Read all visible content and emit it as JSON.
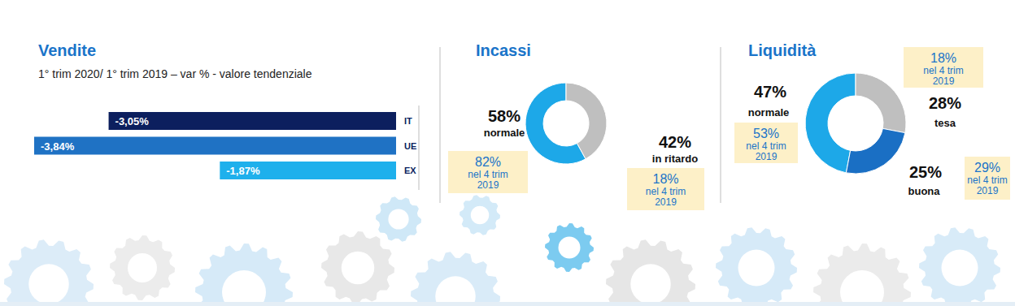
{
  "chart_data": [
    {
      "type": "bar",
      "title": "Vendite",
      "subtitle": "1° trim 2020/ 1° trim 2019 – var % - valore tendenziale",
      "orientation": "horizontal",
      "categories": [
        "IT",
        "UE",
        "EX"
      ],
      "values": [
        -3.05,
        -3.84,
        -1.87
      ],
      "value_labels": [
        "-3,05%",
        "-3,84%",
        "-1,87%"
      ],
      "colors": [
        "#0c1f5e",
        "#1f72c4",
        "#1eb0ec"
      ],
      "xlim": [
        -3.84,
        0
      ],
      "data_labels": true,
      "tick_labels": "y"
    },
    {
      "type": "donut",
      "title": "Incassi",
      "categories": [
        "normale",
        "in ritardo"
      ],
      "values": [
        58,
        42
      ],
      "value_labels": [
        "58%",
        "42%"
      ],
      "colors": [
        "#1da8e8",
        "#bfbfbf"
      ],
      "data_labels": true,
      "comparison": {
        "label": "nel 4 trim 2019",
        "values": [
          82,
          18
        ],
        "value_labels": [
          "82%",
          "18%"
        ]
      }
    },
    {
      "type": "donut",
      "title": "Liquidità",
      "categories": [
        "normale",
        "tesa",
        "buona"
      ],
      "values": [
        47,
        28,
        25
      ],
      "value_labels": [
        "47%",
        "28%",
        "25%"
      ],
      "colors": [
        "#1da8e8",
        "#bfbfbf",
        "#1a6fc4"
      ],
      "data_labels": true,
      "comparison": {
        "label": "nel 4 trim 2019",
        "values": [
          53,
          18,
          29
        ],
        "value_labels": [
          "53%",
          "18%",
          "29%"
        ]
      }
    }
  ]
}
